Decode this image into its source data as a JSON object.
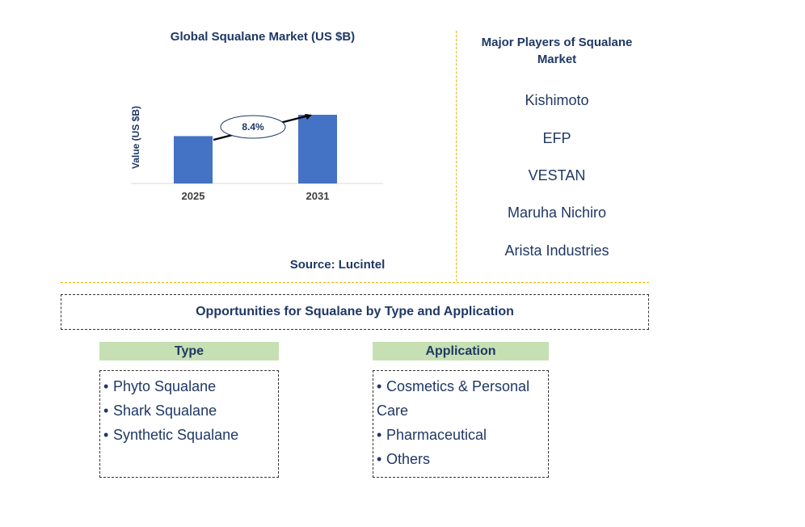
{
  "chart_data": {
    "type": "bar",
    "title": "Global Squalane Market (US $B)",
    "ylabel": "Value (US $B)",
    "xlabel": "",
    "categories": [
      "2025",
      "2031"
    ],
    "values": [
      1.0,
      1.45
    ],
    "annotation": "8.4%",
    "bar_color": "#4472c4",
    "grid": false,
    "source": "Source: Lucintel"
  },
  "players": {
    "title": "Major Players of Squalane Market",
    "items": [
      "Kishimoto",
      "EFP",
      "VESTAN",
      "Maruha Nichiro",
      "Arista Industries"
    ]
  },
  "opportunities": {
    "title": "Opportunities for Squalane by Type and Application",
    "type": {
      "header": "Type",
      "items": [
        "Phyto Squalane",
        "Shark Squalane",
        "Synthetic Squalane"
      ]
    },
    "application": {
      "header": "Application",
      "items": [
        "Cosmetics & Personal",
        "Care",
        "Pharmaceutical",
        "Others"
      ]
    }
  },
  "colors": {
    "text": "#1f3864",
    "divider": "#f0b400",
    "header_fill": "#c6e0b4"
  }
}
